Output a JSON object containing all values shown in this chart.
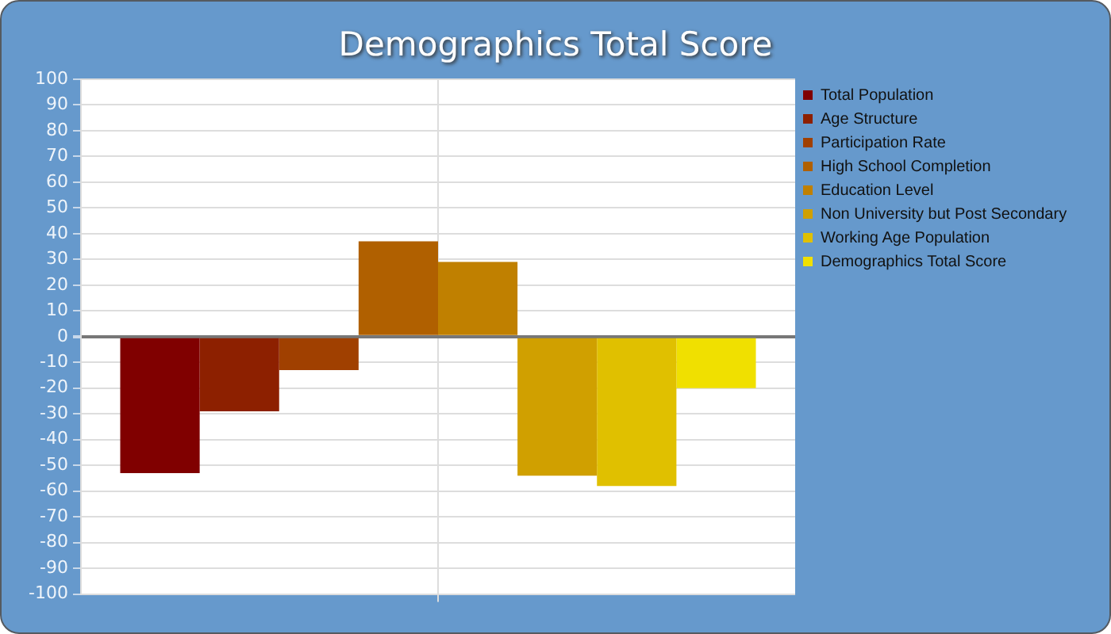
{
  "chart_data": {
    "type": "bar",
    "title": "Demographics Total Score",
    "categories": [
      null
    ],
    "series": [
      {
        "name": "Total Population",
        "color": "#800000",
        "values": [
          -53
        ]
      },
      {
        "name": "Age Structure",
        "color": "#8d2000",
        "values": [
          -29
        ]
      },
      {
        "name": "Participation Rate",
        "color": "#a04000",
        "values": [
          -13
        ]
      },
      {
        "name": "High School Completion",
        "color": "#b06000",
        "values": [
          37
        ]
      },
      {
        "name": "Education Level",
        "color": "#c08000",
        "values": [
          29
        ]
      },
      {
        "name": "Non University but Post Secondary",
        "color": "#d0a000",
        "values": [
          -54
        ]
      },
      {
        "name": "Working Age Population",
        "color": "#e0c000",
        "values": [
          -58
        ]
      },
      {
        "name": "Demographics Total Score",
        "color": "#f0e000",
        "values": [
          -20
        ]
      }
    ],
    "ylim": [
      -100,
      100
    ],
    "yticks": [
      -100,
      -90,
      -80,
      -70,
      -60,
      -50,
      -40,
      -30,
      -20,
      -10,
      0,
      10,
      20,
      30,
      40,
      50,
      60,
      70,
      80,
      90,
      100
    ],
    "grid": true,
    "legend": "top right"
  }
}
